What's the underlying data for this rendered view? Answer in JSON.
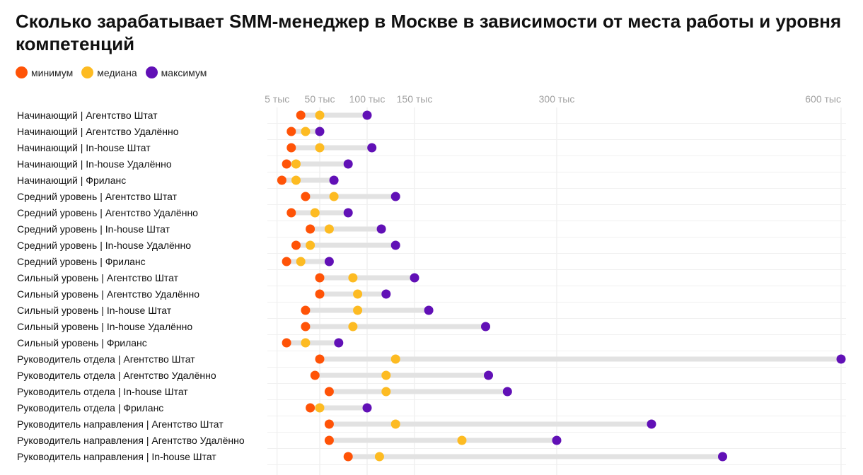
{
  "title": "Сколько зарабатывает SMM-менеджер в Москве в зависимости от места работы и уровня компетенций",
  "legend": [
    {
      "key": "min",
      "label": "минимум",
      "color": "#ff5307"
    },
    {
      "key": "median",
      "label": "медиана",
      "color": "#fdbb22"
    },
    {
      "key": "max",
      "label": "максимум",
      "color": "#6110b6"
    }
  ],
  "colors": {
    "range_bar": "#e2e2e2",
    "gridline": "#e9e9e9",
    "tick_text": "#a0a0a0"
  },
  "chart_data": {
    "type": "dumbbell",
    "unit": "тыс",
    "x_ticks": [
      {
        "value": 5,
        "label": "5 тыс"
      },
      {
        "value": 50,
        "label": "50 тыс"
      },
      {
        "value": 100,
        "label": "100 тыс"
      },
      {
        "value": 150,
        "label": "150 тыс"
      },
      {
        "value": 300,
        "label": "300 тыс"
      },
      {
        "value": 600,
        "label": "600 тыс"
      }
    ],
    "xlim": [
      0,
      600
    ],
    "grid": true,
    "legend_position": "top-left",
    "series": [
      {
        "name": "минимум",
        "key": "min"
      },
      {
        "name": "медиана",
        "key": "median"
      },
      {
        "name": "максимум",
        "key": "max"
      }
    ],
    "rows": [
      {
        "label": "Начинающий | Агентство Штат",
        "min": 30,
        "median": 50,
        "max": 100
      },
      {
        "label": "Начинающий | Агентство Удалённо",
        "min": 20,
        "median": 35,
        "max": 50
      },
      {
        "label": "Начинающий | In-house Штат",
        "min": 20,
        "median": 50,
        "max": 105
      },
      {
        "label": "Начинающий | In-house Удалённо",
        "min": 15,
        "median": 25,
        "max": 80
      },
      {
        "label": "Начинающий | Фриланс",
        "min": 10,
        "median": 25,
        "max": 65
      },
      {
        "label": "Средний уровень | Агентство Штат",
        "min": 35,
        "median": 65,
        "max": 130
      },
      {
        "label": "Средний уровень | Агентство Удалённо",
        "min": 20,
        "median": 45,
        "max": 80
      },
      {
        "label": "Средний уровень | In-house Штат",
        "min": 40,
        "median": 60,
        "max": 115
      },
      {
        "label": "Средний уровень | In-house Удалённо",
        "min": 25,
        "median": 40,
        "max": 130
      },
      {
        "label": "Средний уровень | Фриланс",
        "min": 15,
        "median": 30,
        "max": 60
      },
      {
        "label": "Сильный уровень | Агентство Штат",
        "min": 50,
        "median": 85,
        "max": 150
      },
      {
        "label": "Сильный уровень | Агентство Удалённо",
        "min": 50,
        "median": 90,
        "max": 120
      },
      {
        "label": "Сильный уровень | In-house Штат",
        "min": 35,
        "median": 90,
        "max": 165
      },
      {
        "label": "Сильный уровень | In-house Удалённо",
        "min": 35,
        "median": 85,
        "max": 225
      },
      {
        "label": "Сильный уровень | Фриланс",
        "min": 15,
        "median": 35,
        "max": 70
      },
      {
        "label": "Руководитель отдела | Агентство Штат",
        "min": 50,
        "median": 130,
        "max": 600
      },
      {
        "label": "Руководитель отдела | Агентство Удалённо",
        "min": 45,
        "median": 120,
        "max": 228
      },
      {
        "label": "Руководитель отдела | In-house Штат",
        "min": 60,
        "median": 120,
        "max": 248
      },
      {
        "label": "Руководитель отдела | Фриланс",
        "min": 40,
        "median": 50,
        "max": 100
      },
      {
        "label": "Руководитель направления | Агентство Штат",
        "min": 60,
        "median": 130,
        "max": 400
      },
      {
        "label": "Руководитель направления | Агентство Удалённо",
        "min": 60,
        "median": 200,
        "max": 300
      },
      {
        "label": "Руководитель направления | In-house Штат",
        "min": 80,
        "median": 113,
        "max": 475
      }
    ]
  }
}
